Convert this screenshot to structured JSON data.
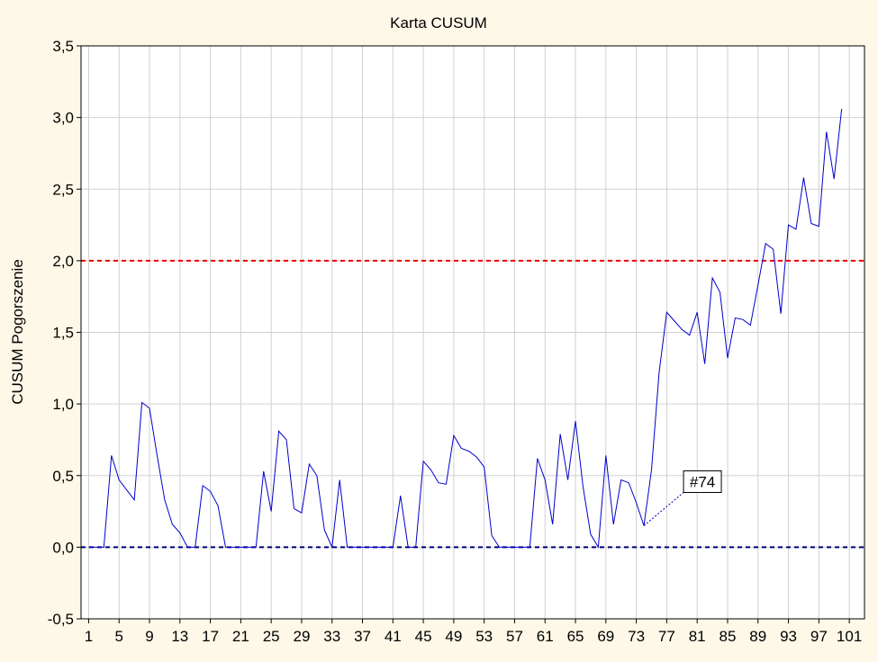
{
  "chart_data": {
    "type": "line",
    "title": "Karta CUSUM",
    "ylabel": "CUSUM Pogorszenie",
    "xlabel": "",
    "xlim": [
      0,
      103
    ],
    "ylim": [
      -0.5,
      3.5
    ],
    "grid": true,
    "legend": "none",
    "x_ticks": [
      1,
      5,
      9,
      13,
      17,
      21,
      25,
      29,
      33,
      37,
      41,
      45,
      49,
      53,
      57,
      61,
      65,
      69,
      73,
      77,
      81,
      85,
      89,
      93,
      97,
      101
    ],
    "y_ticks": [
      {
        "value": -0.5,
        "label": "-0,5"
      },
      {
        "value": 0.0,
        "label": "0,0"
      },
      {
        "value": 0.5,
        "label": "0,5"
      },
      {
        "value": 1.0,
        "label": "1,0"
      },
      {
        "value": 1.5,
        "label": "1,5"
      },
      {
        "value": 2.0,
        "label": "2,0"
      },
      {
        "value": 2.5,
        "label": "2,5"
      },
      {
        "value": 3.0,
        "label": "3,0"
      },
      {
        "value": 3.5,
        "label": "3,5"
      }
    ],
    "reference_lines": [
      {
        "value": 2.0,
        "color": "#ee0000",
        "style": "dashed"
      },
      {
        "value": 0.0,
        "color": "#00007a",
        "style": "dashed"
      }
    ],
    "series": [
      {
        "color": "#0000cc",
        "x": [
          1,
          2,
          3,
          4,
          5,
          6,
          7,
          8,
          9,
          10,
          11,
          12,
          13,
          14,
          15,
          16,
          17,
          18,
          19,
          20,
          21,
          22,
          23,
          24,
          25,
          26,
          27,
          28,
          29,
          30,
          31,
          32,
          33,
          34,
          35,
          36,
          37,
          38,
          39,
          40,
          41,
          42,
          43,
          44,
          45,
          46,
          47,
          48,
          49,
          50,
          51,
          52,
          53,
          54,
          55,
          56,
          57,
          58,
          59,
          60,
          61,
          62,
          63,
          64,
          65,
          66,
          67,
          68,
          69,
          70,
          71,
          72,
          73,
          74,
          75,
          76,
          77,
          78,
          79,
          80,
          81,
          82,
          83,
          84,
          85,
          86,
          87,
          88,
          89,
          90,
          91,
          92,
          93,
          94,
          95,
          96,
          97,
          98,
          99,
          100
        ],
        "values": [
          0,
          0,
          0,
          0.64,
          0.47,
          0.4,
          0.33,
          1.01,
          0.97,
          0.64,
          0.33,
          0.16,
          0.1,
          0,
          0,
          0.43,
          0.39,
          0.29,
          0,
          0,
          0,
          0,
          0,
          0.53,
          0.25,
          0.81,
          0.75,
          0.27,
          0.24,
          0.58,
          0.5,
          0.12,
          0,
          0.47,
          0,
          0,
          0,
          0,
          0,
          0,
          0,
          0.36,
          0,
          0,
          0.6,
          0.54,
          0.45,
          0.44,
          0.78,
          0.69,
          0.67,
          0.63,
          0.56,
          0.08,
          0,
          0,
          0,
          0,
          0,
          0.62,
          0.47,
          0.16,
          0.79,
          0.47,
          0.88,
          0.42,
          0.09,
          0,
          0.64,
          0.16,
          0.47,
          0.45,
          0.31,
          0.15,
          0.54,
          1.22,
          1.64,
          1.58,
          1.52,
          1.48,
          1.64,
          1.28,
          1.88,
          1.78,
          1.32,
          1.6,
          1.59,
          1.55,
          1.83,
          2.12,
          2.08,
          1.63,
          2.25,
          2.22,
          2.58,
          2.26,
          2.24,
          2.9,
          2.57,
          3.06
        ]
      }
    ],
    "annotations": [
      {
        "label": "#74",
        "x": 74,
        "y": 0.15
      }
    ]
  }
}
